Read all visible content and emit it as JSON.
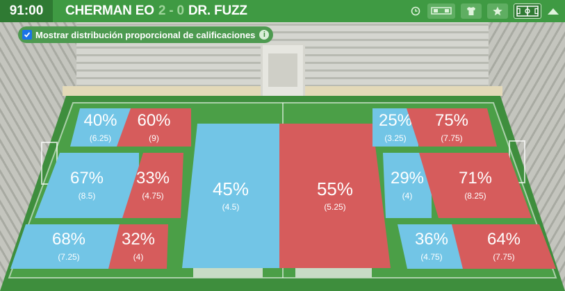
{
  "header": {
    "clock": "91:00",
    "home_team": "CHERMAN EO",
    "score": "2 - 0",
    "away_team": "DR. FUZZ"
  },
  "tools": [
    {
      "name": "clock-icon",
      "active": false
    },
    {
      "name": "scoreboard-icon",
      "active": false
    },
    {
      "name": "shirt-icon",
      "active": false
    },
    {
      "name": "star-icon",
      "active": false
    },
    {
      "name": "pitch-icon",
      "active": true
    },
    {
      "name": "collapse-arrow-icon",
      "active": false
    }
  ],
  "toggle": {
    "label": "Mostrar distribución proporcional de calificaciones",
    "checked": true
  },
  "colors": {
    "home": "#72c5e6",
    "away": "#d65c5c",
    "header": "#3f9a43"
  },
  "zones": {
    "left_top": {
      "home_pct": "40%",
      "home_rating": "(6.25)",
      "away_pct": "60%",
      "away_rating": "(9)"
    },
    "left_mid": {
      "home_pct": "67%",
      "home_rating": "(8.5)",
      "away_pct": "33%",
      "away_rating": "(4.75)"
    },
    "left_bot": {
      "home_pct": "68%",
      "home_rating": "(7.25)",
      "away_pct": "32%",
      "away_rating": "(4)"
    },
    "center": {
      "home_pct": "45%",
      "home_rating": "(4.5)",
      "away_pct": "55%",
      "away_rating": "(5.25)"
    },
    "right_top": {
      "home_pct": "25%",
      "home_rating": "(3.25)",
      "away_pct": "75%",
      "away_rating": "(7.75)"
    },
    "right_mid": {
      "home_pct": "29%",
      "home_rating": "(4)",
      "away_pct": "71%",
      "away_rating": "(8.25)"
    },
    "right_bot": {
      "home_pct": "36%",
      "home_rating": "(4.75)",
      "away_pct": "64%",
      "away_rating": "(7.75)"
    }
  }
}
